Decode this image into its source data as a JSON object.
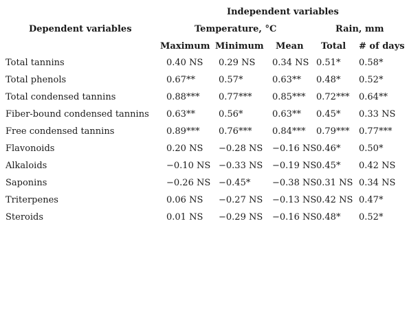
{
  "header": {
    "independent": "Independent variables",
    "dependent": "Dependent variables",
    "temperature": "Temperature, °C",
    "rain": "Rain, mm",
    "maximum": "Maximum",
    "minimum": "Minimum",
    "mean": "Mean",
    "total": "Total",
    "days": "# of days"
  },
  "rows": [
    [
      "Total tannins",
      "0.40 NS",
      "0.29 NS",
      "0.34 NS",
      "0.51*",
      "0.58*"
    ],
    [
      "Total phenols",
      "0.67**",
      "0.57*",
      "0.63**",
      "0.48*",
      "0.52*"
    ],
    [
      "Total condensed tannins",
      "0.88***",
      "0.77***",
      "0.85***",
      "0.72***",
      "0.64**"
    ],
    [
      "Fiber-bound condensed tannins",
      "0.63**",
      "0.56*",
      "0.63**",
      "0.45*",
      "0.33 NS"
    ],
    [
      "Free condensed tannins",
      "0.89***",
      "0.76***",
      "0.84***",
      "0.79***",
      "0.77***"
    ],
    [
      "Flavonoids",
      "0.20 NS",
      "−0.28 NS",
      "−0.16 NS",
      "0.46*",
      "0.50*"
    ],
    [
      "Alkaloids",
      "−0.10 NS",
      "−0.33 NS",
      "−0.19 NS",
      "0.45*",
      "0.42 NS"
    ],
    [
      "Saponins",
      "−0.26 NS",
      "−0.45*",
      "−0.38 NS",
      "0.31 NS",
      "0.34 NS"
    ],
    [
      "Triterpenes",
      "0.06 NS",
      "−0.27 NS",
      "−0.13 NS",
      "0.42 NS",
      "0.47*"
    ],
    [
      "Steroids",
      "0.01 NS",
      "−0.29 NS",
      "−0.16 NS",
      "0.48*",
      "0.52*"
    ]
  ]
}
